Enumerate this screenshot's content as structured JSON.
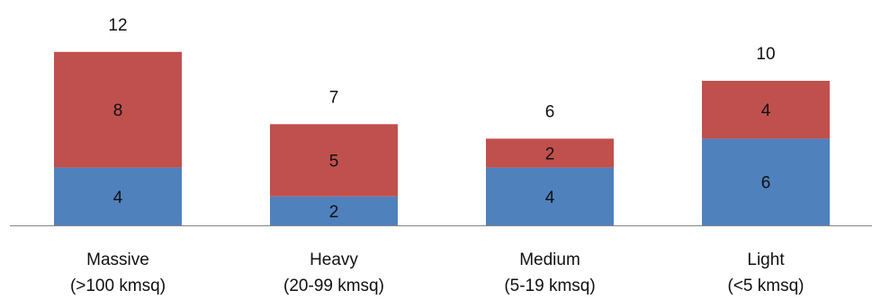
{
  "chart_data": {
    "type": "bar",
    "stacked": true,
    "title": "",
    "xlabel": "",
    "ylabel": "",
    "ylim": [
      0,
      12
    ],
    "grid": false,
    "legend": "none",
    "categories": [
      [
        "Massive",
        "(>100 kmsq)"
      ],
      [
        "Heavy",
        "(20-99 kmsq)"
      ],
      [
        "Medium",
        "(5-19 kmsq)"
      ],
      [
        "Light",
        "(<5 kmsq)"
      ]
    ],
    "series": [
      {
        "values": [
          4,
          2,
          4,
          6
        ],
        "color": "#4f81bd"
      },
      {
        "values": [
          8,
          5,
          2,
          4
        ],
        "color": "#c0504d"
      }
    ],
    "totals": [
      12,
      7,
      6,
      10
    ],
    "axis_color": "#858585"
  }
}
